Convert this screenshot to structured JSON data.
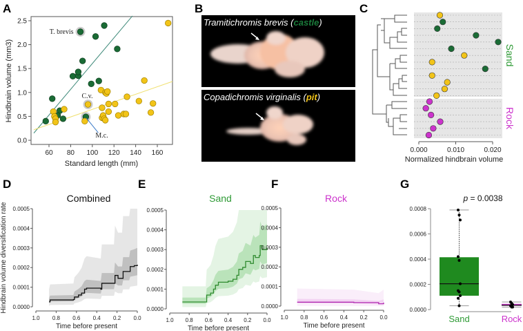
{
  "panel_labels": {
    "a": "A",
    "b": "B",
    "c": "C",
    "d": "D",
    "e": "E",
    "f": "F",
    "g": "G"
  },
  "colors": {
    "sand_green": "#1a6b35",
    "pit_yellow": "#f2c418",
    "rock_magenta": "#cc33cc",
    "label_green": "#2e9a35",
    "label_magenta": "#cc33cc",
    "box_green": "#1f8a1f"
  },
  "panel_b": {
    "top_species": "Tramitichromis brevis",
    "top_paren_open": " (",
    "top_type": "castle",
    "top_paren_close": ")",
    "bottom_species": "Copadichromis virginalis",
    "bottom_paren_open": " (",
    "bottom_type": "pit",
    "bottom_paren_close": ")"
  },
  "chart_data": [
    {
      "id": "A",
      "type": "scatter",
      "xlabel": "Standard length (mm)",
      "ylabel": "Hindbrain volume (mm3)",
      "xlim": [
        43,
        174
      ],
      "ylim": [
        -0.09,
        2.6
      ],
      "xticks": [
        60,
        80,
        100,
        120,
        140,
        160
      ],
      "yticks": [
        "0.0",
        "0.5",
        "1.0",
        "1.5",
        "2.0",
        "2.5"
      ],
      "series": [
        {
          "name": "castle",
          "color": "#1a6b35",
          "points": [
            [
              57,
              0.4
            ],
            [
              63,
              0.87
            ],
            [
              70,
              0.62
            ],
            [
              68,
              0.52
            ],
            [
              73,
              0.45
            ],
            [
              82,
              1.34
            ],
            [
              87,
              1.35
            ],
            [
              87,
              1.43
            ],
            [
              89,
              2.27
            ],
            [
              91,
              1.66
            ],
            [
              94,
              0.49
            ],
            [
              99,
              1.18
            ],
            [
              103,
              2.17
            ],
            [
              106,
              1.24
            ],
            [
              111,
              2.4
            ],
            [
              123,
              1.91
            ]
          ],
          "fit": [
            [
              46,
              0.15
            ],
            [
              137,
              2.6
            ]
          ]
        },
        {
          "name": "pit",
          "color": "#f2c418",
          "points": [
            [
              64,
              0.6
            ],
            [
              65,
              0.5
            ],
            [
              66,
              0.45
            ],
            [
              66,
              0.38
            ],
            [
              74,
              0.65
            ],
            [
              93,
              0.4
            ],
            [
              96,
              0.75
            ],
            [
              108,
              1.05
            ],
            [
              109,
              0.68
            ],
            [
              109,
              0.47
            ],
            [
              110,
              0.52
            ],
            [
              111,
              0.45
            ],
            [
              112,
              0.42
            ],
            [
              112,
              1.0
            ],
            [
              113,
              0.98
            ],
            [
              114,
              1.02
            ],
            [
              115,
              0.6
            ],
            [
              115,
              0.76
            ],
            [
              121,
              0.76
            ],
            [
              124,
              0.52
            ],
            [
              129,
              0.55
            ],
            [
              131,
              0.55
            ],
            [
              132,
              0.91
            ],
            [
              143,
              0.82
            ],
            [
              148,
              1.25
            ],
            [
              154,
              0.58
            ],
            [
              156,
              0.77
            ],
            [
              170,
              2.45
            ]
          ],
          "fit": [
            [
              46,
              0.22
            ],
            [
              174,
              1.23
            ]
          ]
        }
      ],
      "annotations": [
        {
          "text": "T. brevis",
          "x": 89,
          "y": 2.27
        },
        {
          "text": "C.v.",
          "x": 96,
          "y": 0.75
        },
        {
          "text": "M.c.",
          "x": 94,
          "y": 0.49
        }
      ]
    },
    {
      "id": "C",
      "type": "scatter",
      "xlabel": "Normalized hindbrain volume",
      "xticks": [
        "0.000",
        "0.010",
        "0.020"
      ],
      "xlim": [
        0,
        0.02
      ],
      "groups": [
        {
          "label": "Sand",
          "values": [
            0.0057,
            0.0065,
            0.005,
            0.0155,
            0.0215,
            0.0088,
            0.0123,
            0.0036,
            0.018,
            0.0036,
            0.0077,
            0.007,
            0.0048
          ],
          "colors": [
            "y",
            "g",
            "g",
            "g",
            "g",
            "g",
            "y",
            "y",
            "g",
            "y",
            "y",
            "y",
            "y"
          ]
        },
        {
          "label": "Rock",
          "values": [
            0.0029,
            0.0019,
            0.0033,
            0.0058,
            0.0039,
            0.0027
          ],
          "colors": [
            "m",
            "m",
            "m",
            "m",
            "m",
            "m"
          ]
        }
      ]
    },
    {
      "id": "D",
      "type": "line",
      "title": "Combined",
      "color": "#111111",
      "band": "#777777",
      "ylabel": "Hindbrain volume diversification rate",
      "xlabel": "Time before present",
      "xticks": [
        "1.0",
        "0.8",
        "0.6",
        "0.4",
        "0.2",
        "0.0"
      ],
      "yticks": [
        "0.0000",
        "0.0001",
        "0.0002",
        "0.0003",
        "0.0004",
        "0.0005"
      ],
      "xlim": [
        1.0,
        0.0
      ],
      "ylim": [
        0,
        0.0005
      ],
      "values": [
        [
          0.87,
          2.5e-05
        ],
        [
          0.86,
          3.5e-05
        ],
        [
          0.63,
          3.7e-05
        ],
        [
          0.62,
          5e-05
        ],
        [
          0.58,
          6e-05
        ],
        [
          0.55,
          7e-05
        ],
        [
          0.52,
          9e-05
        ],
        [
          0.5,
          9.5e-05
        ],
        [
          0.36,
          9e-05
        ],
        [
          0.35,
          0.00012
        ],
        [
          0.23,
          0.00012
        ],
        [
          0.22,
          0.00016
        ],
        [
          0.19,
          0.000145
        ],
        [
          0.15,
          0.000145
        ],
        [
          0.14,
          0.00018
        ],
        [
          0.08,
          0.00018
        ],
        [
          0.07,
          0.000205
        ],
        [
          0.03,
          0.00021
        ],
        [
          0.0,
          0.000215
        ]
      ]
    },
    {
      "id": "E",
      "type": "line",
      "title": "Sand",
      "color": "#2e8a2e",
      "band": "#6cc46c",
      "xlabel": "Time before present",
      "xticks": [
        "1.0",
        "0.8",
        "0.6",
        "0.4",
        "0.2",
        "0.0"
      ],
      "yticks": [
        "0.0000",
        "0.0001",
        "0.0002",
        "0.0003",
        "0.0004",
        "0.0005"
      ],
      "xlim": [
        1.0,
        0.0
      ],
      "ylim": [
        0,
        0.0005
      ],
      "values": [
        [
          0.87,
          3.5e-05
        ],
        [
          0.63,
          3.5e-05
        ],
        [
          0.62,
          7e-05
        ],
        [
          0.58,
          8e-05
        ],
        [
          0.55,
          0.0001
        ],
        [
          0.53,
          0.00012
        ],
        [
          0.5,
          0.000135
        ],
        [
          0.4,
          0.00014
        ],
        [
          0.35,
          0.00015
        ],
        [
          0.31,
          0.00017
        ],
        [
          0.29,
          0.0002
        ],
        [
          0.25,
          0.00021
        ],
        [
          0.22,
          0.00024
        ],
        [
          0.17,
          0.00023
        ],
        [
          0.14,
          0.00027
        ],
        [
          0.12,
          0.00026
        ],
        [
          0.08,
          0.00027
        ],
        [
          0.07,
          0.00032
        ],
        [
          0.05,
          0.0003
        ],
        [
          0.0,
          0.00031
        ]
      ]
    },
    {
      "id": "F",
      "type": "line",
      "title": "Rock",
      "color": "#b02ab0",
      "band": "#e6a0e6",
      "xlabel": "Time before present",
      "xticks": [
        "1.0",
        "0.8",
        "0.6",
        "0.4",
        "0.2",
        "0.0"
      ],
      "yticks": [
        "0.0000",
        "0.0001",
        "0.0002",
        "0.0003",
        "0.0004",
        "0.0005"
      ],
      "xlim": [
        1.0,
        0.0
      ],
      "ylim": [
        0,
        0.0005
      ],
      "values": [
        [
          0.87,
          2e-05
        ],
        [
          0.3,
          1.8e-05
        ],
        [
          0.05,
          1.2e-05
        ],
        [
          0.0,
          1.8e-05
        ]
      ]
    },
    {
      "id": "G",
      "type": "box",
      "annotation_p": "p",
      "annotation_rest": " = 0.0038",
      "yticks": [
        "0.0000",
        "0.0002",
        "0.0004",
        "0.0006",
        "0.0008"
      ],
      "ylim": [
        0,
        0.0008
      ],
      "groups": [
        {
          "label": "Sand",
          "color": "#1f8a1f",
          "min": 3e-05,
          "q1": 0.00011,
          "median": 0.000205,
          "q3": 0.000415,
          "max": 0.00079,
          "points": [
            0.00079,
            0.00075,
            0.00071,
            0.00042,
            0.00039,
            0.000205,
            0.00015,
            0.00014,
            0.00011,
            9e-05,
            3e-05
          ]
        },
        {
          "label": "Rock",
          "color": "#cc33cc",
          "min": 2e-05,
          "q1": 3e-05,
          "median": 3.5e-05,
          "q3": 4.5e-05,
          "max": 6e-05,
          "points": [
            6e-05,
            5e-05,
            4e-05,
            3e-05,
            2e-05,
            2e-05
          ]
        }
      ]
    }
  ]
}
